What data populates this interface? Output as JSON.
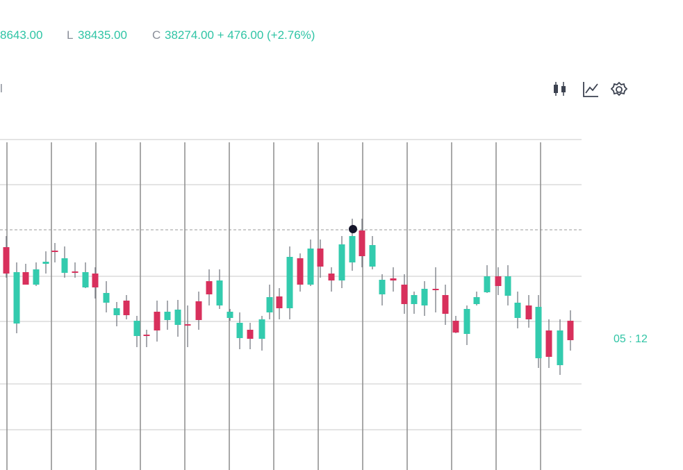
{
  "header": {
    "high_value": "8643.00",
    "low_label": "L",
    "low_value": "38435.00",
    "close_label": "C",
    "close_value": "38274.00 + 476.00 (+2.76%)"
  },
  "toolbar": {
    "left_text": "l"
  },
  "chart": {
    "countdown": "05 : 12"
  }
}
